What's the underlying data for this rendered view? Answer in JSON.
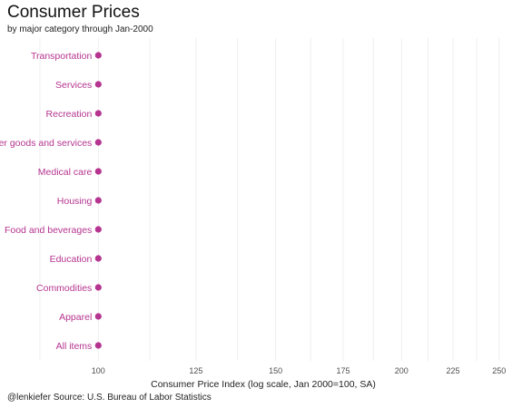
{
  "chart_data": {
    "type": "scatter",
    "title": "Consumer Prices",
    "subtitle": "by major category through Jan-2000",
    "xlabel": "Consumer Price Index (log scale, Jan 2000=100, SA)",
    "ylabel": "",
    "x_scale": "log",
    "xlim": [
      85,
      258
    ],
    "x_ticks": [
      100,
      125,
      150,
      175,
      200,
      225,
      250
    ],
    "categories": [
      "Transportation",
      "Services",
      "Recreation",
      "Other goods and services",
      "Medical care",
      "Housing",
      "Food and beverages",
      "Education",
      "Commodities",
      "Apparel",
      "All items"
    ],
    "values": [
      100,
      100,
      100,
      100,
      100,
      100,
      100,
      100,
      100,
      100,
      100
    ],
    "grid": "vertical",
    "colors": {
      "point": "#b5348f",
      "label": "#b5348f",
      "grid": "#ebebeb"
    }
  },
  "caption": "@lenkiefer Source: U.S. Bureau of Labor Statistics"
}
